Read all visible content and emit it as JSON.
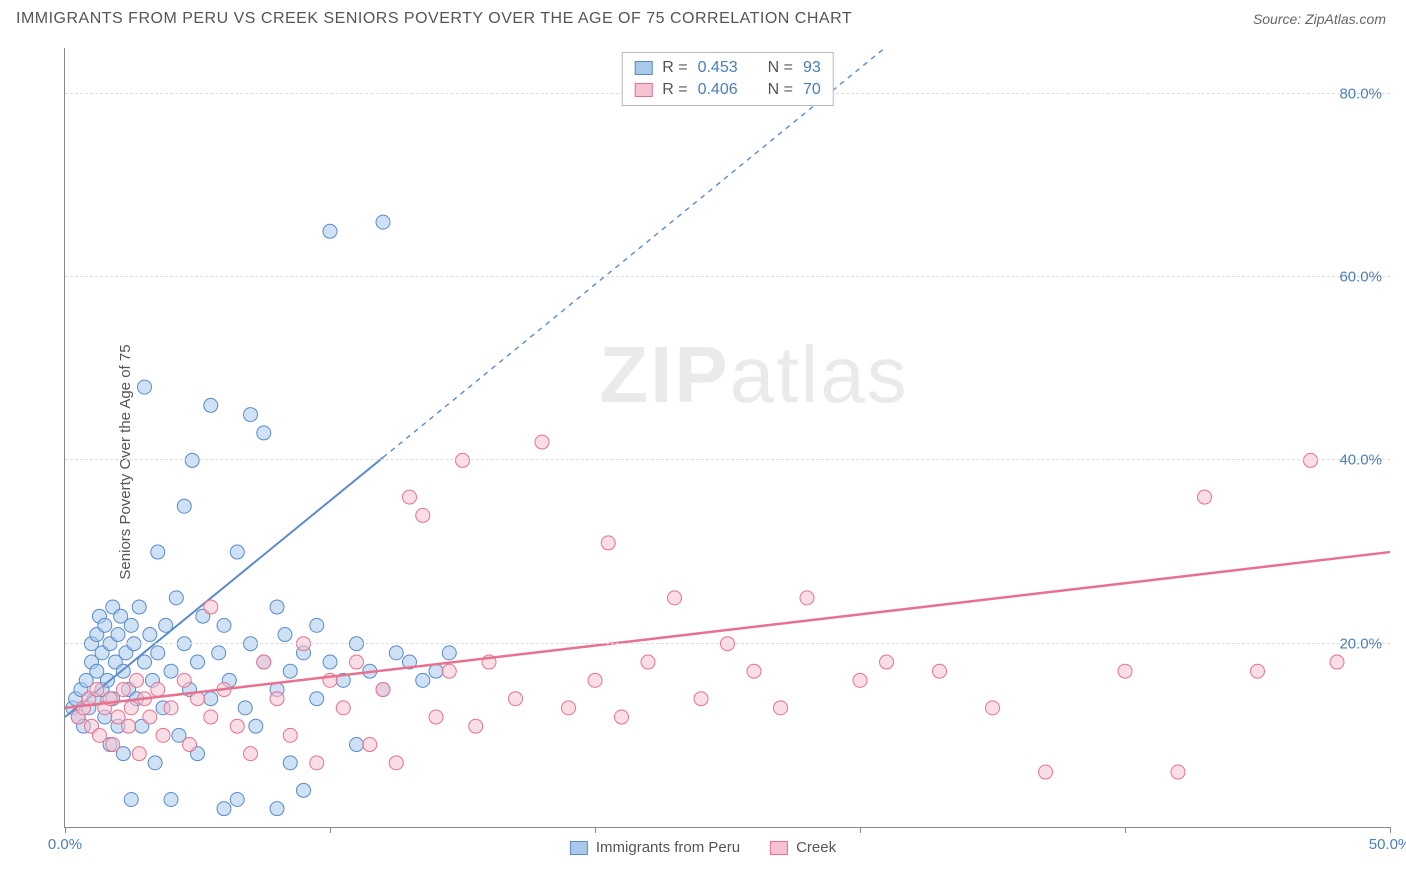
{
  "header": {
    "title": "IMMIGRANTS FROM PERU VS CREEK SENIORS POVERTY OVER THE AGE OF 75 CORRELATION CHART",
    "source_prefix": "Source: ",
    "source_name": "ZipAtlas.com"
  },
  "ylabel": "Seniors Poverty Over the Age of 75",
  "watermark": {
    "bold": "ZIP",
    "light": "atlas"
  },
  "legend_top": {
    "series": [
      {
        "swatch_fill": "#a8c8ec",
        "swatch_border": "#5b8bc9",
        "r_label": "R =",
        "r_value": "0.453",
        "n_label": "N =",
        "n_value": "93"
      },
      {
        "swatch_fill": "#f6c2cf",
        "swatch_border": "#e8718f",
        "r_label": "R =",
        "r_value": "0.406",
        "n_label": "N =",
        "n_value": "70"
      }
    ]
  },
  "legend_bottom": {
    "items": [
      {
        "swatch_fill": "#a8c8ec",
        "swatch_border": "#5b8bc9",
        "label": "Immigrants from Peru"
      },
      {
        "swatch_fill": "#f6c2cf",
        "swatch_border": "#e8718f",
        "label": "Creek"
      }
    ]
  },
  "chart": {
    "type": "scatter",
    "xlim": [
      0,
      50
    ],
    "ylim": [
      0,
      85
    ],
    "x_ticks": [
      0,
      10,
      20,
      30,
      40,
      50
    ],
    "x_tick_labels": [
      "0.0%",
      "",
      "",
      "",
      "",
      "50.0%"
    ],
    "y_ticks": [
      20,
      40,
      60,
      80
    ],
    "y_tick_labels": [
      "20.0%",
      "40.0%",
      "60.0%",
      "80.0%"
    ],
    "grid_color": "#dddddd",
    "background_color": "#ffffff",
    "axis_color": "#888888",
    "marker_radius": 7,
    "marker_opacity": 0.55,
    "series": [
      {
        "name": "Immigrants from Peru",
        "color_fill": "#a8c8ec",
        "color_stroke": "#5b8bc9",
        "trend": {
          "solid_to_x": 12,
          "y_at_0": 12,
          "y_at_50": 130,
          "dash": "5,5",
          "width": 2
        },
        "points": [
          [
            0.3,
            13
          ],
          [
            0.4,
            14
          ],
          [
            0.5,
            12
          ],
          [
            0.6,
            15
          ],
          [
            0.7,
            11
          ],
          [
            0.8,
            16
          ],
          [
            0.9,
            13
          ],
          [
            1.0,
            18
          ],
          [
            1.0,
            20
          ],
          [
            1.1,
            14
          ],
          [
            1.2,
            21
          ],
          [
            1.2,
            17
          ],
          [
            1.3,
            23
          ],
          [
            1.4,
            15
          ],
          [
            1.4,
            19
          ],
          [
            1.5,
            22
          ],
          [
            1.5,
            12
          ],
          [
            1.6,
            16
          ],
          [
            1.7,
            20
          ],
          [
            1.7,
            9
          ],
          [
            1.8,
            24
          ],
          [
            1.8,
            14
          ],
          [
            1.9,
            18
          ],
          [
            2.0,
            21
          ],
          [
            2.0,
            11
          ],
          [
            2.1,
            23
          ],
          [
            2.2,
            17
          ],
          [
            2.2,
            8
          ],
          [
            2.3,
            19
          ],
          [
            2.4,
            15
          ],
          [
            2.5,
            22
          ],
          [
            2.5,
            3
          ],
          [
            2.6,
            20
          ],
          [
            2.7,
            14
          ],
          [
            2.8,
            24
          ],
          [
            2.9,
            11
          ],
          [
            3.0,
            18
          ],
          [
            3.0,
            48
          ],
          [
            3.2,
            21
          ],
          [
            3.3,
            16
          ],
          [
            3.4,
            7
          ],
          [
            3.5,
            19
          ],
          [
            3.5,
            30
          ],
          [
            3.7,
            13
          ],
          [
            3.8,
            22
          ],
          [
            4.0,
            17
          ],
          [
            4.0,
            3
          ],
          [
            4.2,
            25
          ],
          [
            4.3,
            10
          ],
          [
            4.5,
            20
          ],
          [
            4.5,
            35
          ],
          [
            4.7,
            15
          ],
          [
            4.8,
            40
          ],
          [
            5.0,
            18
          ],
          [
            5.0,
            8
          ],
          [
            5.2,
            23
          ],
          [
            5.5,
            14
          ],
          [
            5.5,
            46
          ],
          [
            5.8,
            19
          ],
          [
            6.0,
            22
          ],
          [
            6.0,
            2
          ],
          [
            6.2,
            16
          ],
          [
            6.5,
            3
          ],
          [
            6.5,
            30
          ],
          [
            6.8,
            13
          ],
          [
            7.0,
            20
          ],
          [
            7.0,
            45
          ],
          [
            7.2,
            11
          ],
          [
            7.5,
            18
          ],
          [
            7.5,
            43
          ],
          [
            8.0,
            15
          ],
          [
            8.0,
            24
          ],
          [
            8.0,
            2
          ],
          [
            8.3,
            21
          ],
          [
            8.5,
            17
          ],
          [
            8.5,
            7
          ],
          [
            9.0,
            19
          ],
          [
            9.0,
            4
          ],
          [
            9.5,
            14
          ],
          [
            9.5,
            22
          ],
          [
            10.0,
            18
          ],
          [
            10.0,
            65
          ],
          [
            10.5,
            16
          ],
          [
            11.0,
            20
          ],
          [
            11.0,
            9
          ],
          [
            11.5,
            17
          ],
          [
            12.0,
            66
          ],
          [
            12.0,
            15
          ],
          [
            12.5,
            19
          ],
          [
            13.0,
            18
          ],
          [
            13.5,
            16
          ],
          [
            14.0,
            17
          ],
          [
            14.5,
            19
          ]
        ]
      },
      {
        "name": "Creek",
        "color_fill": "#f6c2cf",
        "color_stroke": "#e8718f",
        "trend": {
          "solid_to_x": 50,
          "y_at_0": 13,
          "y_at_50": 30,
          "dash": "",
          "width": 2.5
        },
        "points": [
          [
            0.5,
            12
          ],
          [
            0.7,
            13
          ],
          [
            0.9,
            14
          ],
          [
            1.0,
            11
          ],
          [
            1.2,
            15
          ],
          [
            1.3,
            10
          ],
          [
            1.5,
            13
          ],
          [
            1.7,
            14
          ],
          [
            1.8,
            9
          ],
          [
            2.0,
            12
          ],
          [
            2.2,
            15
          ],
          [
            2.4,
            11
          ],
          [
            2.5,
            13
          ],
          [
            2.7,
            16
          ],
          [
            2.8,
            8
          ],
          [
            3.0,
            14
          ],
          [
            3.2,
            12
          ],
          [
            3.5,
            15
          ],
          [
            3.7,
            10
          ],
          [
            4.0,
            13
          ],
          [
            4.5,
            16
          ],
          [
            4.7,
            9
          ],
          [
            5.0,
            14
          ],
          [
            5.5,
            12
          ],
          [
            5.5,
            24
          ],
          [
            6.0,
            15
          ],
          [
            6.5,
            11
          ],
          [
            7.0,
            8
          ],
          [
            7.5,
            18
          ],
          [
            8.0,
            14
          ],
          [
            8.5,
            10
          ],
          [
            9.0,
            20
          ],
          [
            9.5,
            7
          ],
          [
            10.0,
            16
          ],
          [
            10.5,
            13
          ],
          [
            11.0,
            18
          ],
          [
            11.5,
            9
          ],
          [
            12.0,
            15
          ],
          [
            12.5,
            7
          ],
          [
            13.0,
            36
          ],
          [
            13.5,
            34
          ],
          [
            14.0,
            12
          ],
          [
            14.5,
            17
          ],
          [
            15.0,
            40
          ],
          [
            15.5,
            11
          ],
          [
            16.0,
            18
          ],
          [
            17.0,
            14
          ],
          [
            18.0,
            42
          ],
          [
            19.0,
            13
          ],
          [
            20.0,
            16
          ],
          [
            20.5,
            31
          ],
          [
            21.0,
            12
          ],
          [
            22.0,
            18
          ],
          [
            23.0,
            25
          ],
          [
            24.0,
            14
          ],
          [
            25.0,
            20
          ],
          [
            26.0,
            17
          ],
          [
            27.0,
            13
          ],
          [
            28.0,
            25
          ],
          [
            30.0,
            16
          ],
          [
            31.0,
            18
          ],
          [
            33.0,
            17
          ],
          [
            35.0,
            13
          ],
          [
            37.0,
            6
          ],
          [
            40.0,
            17
          ],
          [
            42.0,
            6
          ],
          [
            43.0,
            36
          ],
          [
            45.0,
            17
          ],
          [
            47.0,
            40
          ],
          [
            48.0,
            18
          ]
        ]
      }
    ]
  }
}
